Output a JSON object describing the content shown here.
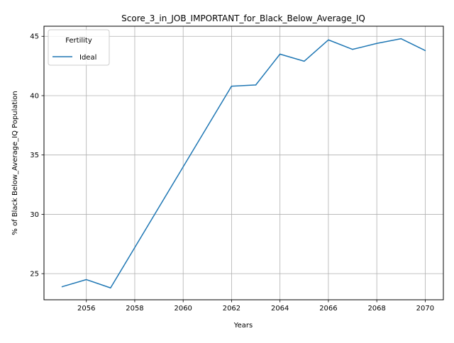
{
  "chart_data": {
    "type": "line",
    "title": "Score_3_in_JOB_IMPORTANT_for_Black_Below_Average_IQ",
    "xlabel": "Years",
    "ylabel": "% of Black Below_Average_IQ Population",
    "xlim": [
      2054.25,
      2070.75
    ],
    "ylim": [
      22.8,
      45.85
    ],
    "xticks": [
      2056,
      2058,
      2060,
      2062,
      2064,
      2066,
      2068,
      2070
    ],
    "xtick_labels": [
      "2056",
      "2058",
      "2060",
      "2062",
      "2064",
      "2066",
      "2068",
      "2070"
    ],
    "yticks": [
      25,
      30,
      35,
      40,
      45
    ],
    "ytick_labels": [
      "25",
      "30",
      "35",
      "40",
      "45"
    ],
    "grid": true,
    "legend": {
      "title": "Fertility",
      "placement": "top-left"
    },
    "series": [
      {
        "name": "Ideal",
        "color": "#1f77b4",
        "x": [
          2055,
          2056,
          2057,
          2062,
          2063,
          2064,
          2065,
          2066,
          2067,
          2068,
          2069,
          2070
        ],
        "values": [
          23.9,
          24.5,
          23.8,
          40.8,
          40.9,
          43.5,
          42.9,
          44.7,
          43.9,
          44.4,
          44.8,
          43.8
        ]
      }
    ]
  }
}
